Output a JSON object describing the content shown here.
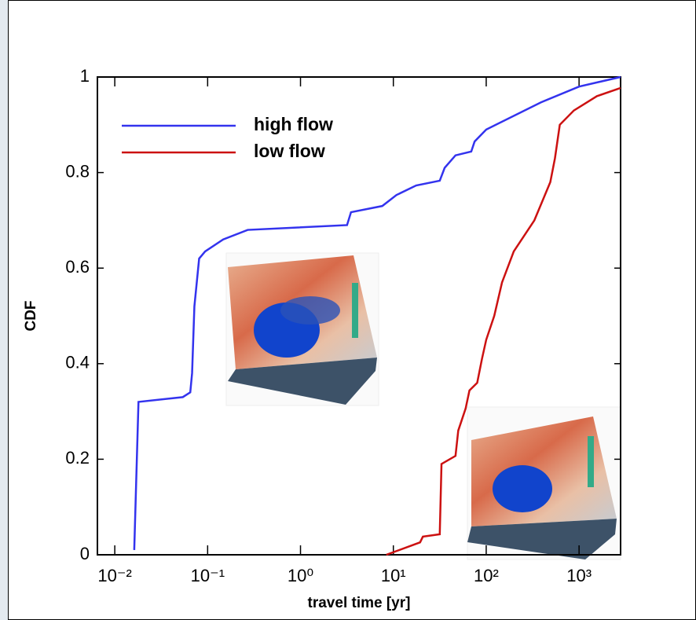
{
  "chart_data": {
    "type": "line",
    "xlabel": "travel time [yr]",
    "ylabel": "CDF",
    "xscale": "log",
    "xlim": [
      0.0065,
      2800
    ],
    "ylim": [
      0,
      1
    ],
    "xticks": [
      {
        "value": 0.01,
        "label": "10⁻²"
      },
      {
        "value": 0.1,
        "label": "10⁻¹"
      },
      {
        "value": 1,
        "label": "10⁰"
      },
      {
        "value": 10,
        "label": "10¹"
      },
      {
        "value": 100,
        "label": "10²"
      },
      {
        "value": 1000,
        "label": "10³"
      }
    ],
    "yticks": [
      0,
      0.2,
      0.4,
      0.6,
      0.8,
      1
    ],
    "legend": "upper left",
    "series": [
      {
        "name": "high flow",
        "color": "#3333ee",
        "x": [
          0.0162,
          0.018,
          0.054,
          0.065,
          0.068,
          0.072,
          0.081,
          0.094,
          0.147,
          0.27,
          3.17,
          3.5,
          7.6,
          10.8,
          17.6,
          31.6,
          35.7,
          46.7,
          69,
          75,
          100,
          389,
          1000,
          2800
        ],
        "values": [
          0.01,
          0.32,
          0.33,
          0.34,
          0.38,
          0.52,
          0.62,
          0.635,
          0.66,
          0.68,
          0.69,
          0.717,
          0.73,
          0.753,
          0.773,
          0.783,
          0.81,
          0.836,
          0.844,
          0.865,
          0.89,
          0.947,
          0.98,
          1
        ]
      },
      {
        "name": "low flow",
        "color": "#cc1111",
        "x": [
          8.4,
          19.4,
          20.8,
          31.6,
          33,
          46.7,
          50,
          60,
          66,
          80,
          90,
          100,
          122,
          148,
          198,
          330,
          490,
          550,
          620,
          880,
          1560,
          2800
        ],
        "values": [
          0,
          0.026,
          0.038,
          0.043,
          0.19,
          0.207,
          0.26,
          0.306,
          0.344,
          0.36,
          0.41,
          0.45,
          0.5,
          0.57,
          0.635,
          0.7,
          0.78,
          0.83,
          0.9,
          0.93,
          0.96,
          0.977
        ]
      }
    ]
  }
}
